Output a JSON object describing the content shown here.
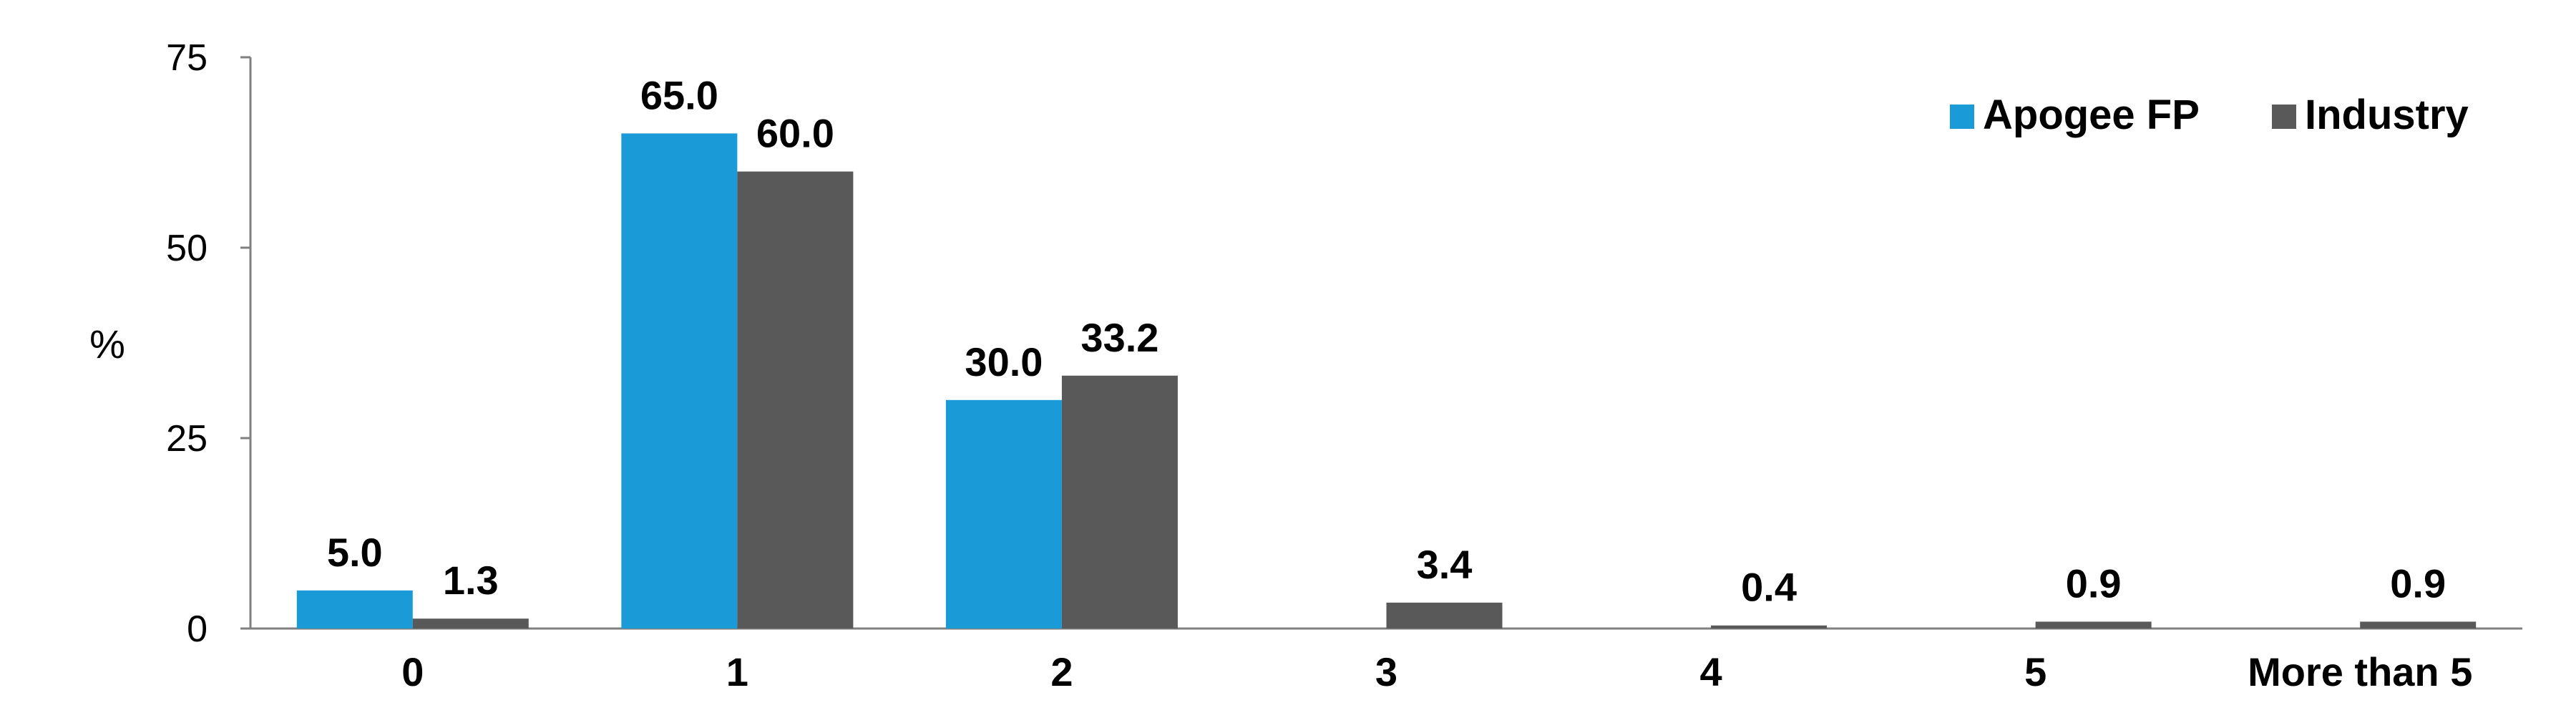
{
  "chart_data": {
    "type": "bar",
    "title": "",
    "xlabel": "",
    "ylabel": "%",
    "ylim": [
      0,
      75
    ],
    "yticks": [
      0,
      25,
      50,
      75
    ],
    "grid": false,
    "legend_position": "top-right",
    "categories": [
      "0",
      "1",
      "2",
      "3",
      "4",
      "5",
      "More than 5"
    ],
    "series": [
      {
        "name": "Apogee FP",
        "color": "#1a9ad6",
        "values": [
          5.0,
          65.0,
          30.0,
          0,
          0,
          0,
          0
        ],
        "labels": [
          "5.0",
          "65.0",
          "30.0",
          null,
          null,
          null,
          null
        ]
      },
      {
        "name": "Industry",
        "color": "#595959",
        "values": [
          1.3,
          60.0,
          33.2,
          3.4,
          0.4,
          0.9,
          0.9
        ],
        "labels": [
          "1.3",
          "60.0",
          "33.2",
          "3.4",
          "0.4",
          "0.9",
          "0.9"
        ]
      }
    ]
  }
}
